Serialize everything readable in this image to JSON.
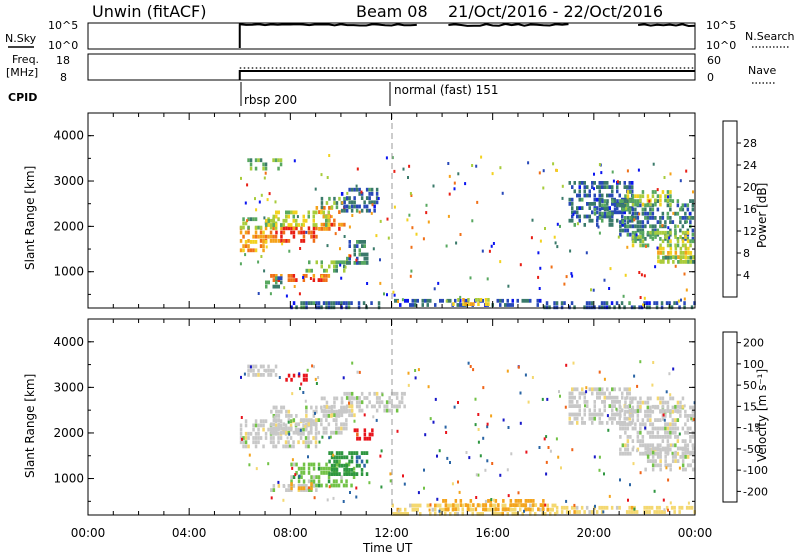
{
  "header": {
    "station": "Unwin (fitACF)",
    "beam": "Beam 08",
    "dates": "21/Oct/2016 - 22/Oct/2016"
  },
  "status_panels": {
    "nsky_label": "N.Sky",
    "nsky_ticks": [
      "10^5",
      "10^0"
    ],
    "nsearch_label": "N.Search",
    "freq_label": "Freq.",
    "freq_unit": "[MHz]",
    "freq_ticks": [
      "18",
      "8"
    ],
    "nave_ticks": [
      "60",
      "0"
    ],
    "nave_label": "Nave",
    "cpid_label": "CPID",
    "cpid_entries": [
      "rbsp 200",
      "normal (fast) 151"
    ]
  },
  "colors": {
    "power": [
      "#0a14f0",
      "#2848b8",
      "#3a7a6a",
      "#58a860",
      "#a8cc3c",
      "#f2d220",
      "#f5a21a",
      "#f07018",
      "#e81e14"
    ],
    "velocity": [
      "#e8141c",
      "#f06418",
      "#f4a41c",
      "#f4d870",
      "#c8c8c8",
      "#72c246",
      "#2e9640",
      "#2a64a4",
      "#1818c8"
    ],
    "ground_scatter": "#c4c4c4"
  },
  "chart_data": [
    {
      "type": "heatmap",
      "name": "power",
      "ylabel": "Slant Range [km]",
      "yticks": [
        "4000",
        "3000",
        "2000",
        "1000"
      ],
      "ylim": [
        200,
        4500
      ],
      "colorbar": {
        "label": "Power [dB]",
        "ticks": [
          "28",
          "24",
          "20",
          "16",
          "12",
          "8",
          "4"
        ],
        "range": [
          0,
          32
        ]
      },
      "regions": [
        {
          "t": [
            6.0,
            7.4
          ],
          "r": [
            1700,
            2000
          ],
          "v": 24
        },
        {
          "t": [
            7.4,
            9.0
          ],
          "r": [
            1650,
            2000
          ],
          "v": 28
        },
        {
          "t": [
            9.0,
            10.1
          ],
          "r": [
            1950,
            2450
          ],
          "v": 26
        },
        {
          "t": [
            6.0,
            7.5
          ],
          "r": [
            2000,
            2200
          ],
          "v": 14
        },
        {
          "t": [
            7.0,
            9.5
          ],
          "r": [
            2050,
            2350
          ],
          "v": 17
        },
        {
          "t": [
            9.2,
            10.3
          ],
          "r": [
            2400,
            2650
          ],
          "v": 12
        },
        {
          "t": [
            10.0,
            11.4
          ],
          "r": [
            2300,
            2850
          ],
          "v": 7
        },
        {
          "t": [
            8.6,
            10.2
          ],
          "r": [
            1050,
            1250
          ],
          "v": 14
        },
        {
          "t": [
            7.2,
            9.6
          ],
          "r": [
            780,
            950
          ],
          "v": 28
        },
        {
          "t": [
            10.2,
            11.0
          ],
          "r": [
            1200,
            1700
          ],
          "v": 9
        },
        {
          "t": [
            6.3,
            7.6
          ],
          "r": [
            3250,
            3500
          ],
          "v": 13
        },
        {
          "t": [
            6.0,
            7.0
          ],
          "r": [
            1500,
            1700
          ],
          "v": 22
        },
        {
          "t": [
            7.0,
            7.6
          ],
          "r": [
            700,
            900
          ],
          "v": 10
        },
        {
          "t": [
            8.0,
            11.5
          ],
          "r": [
            250,
            350
          ],
          "v": 7
        },
        {
          "t": [
            12.0,
            18.0
          ],
          "r": [
            250,
            400
          ],
          "v": 6
        },
        {
          "t": [
            14.4,
            15.8
          ],
          "r": [
            280,
            420
          ],
          "v": 20
        },
        {
          "t": [
            18.0,
            24.0
          ],
          "r": [
            250,
            350
          ],
          "v": 7
        },
        {
          "t": [
            19.0,
            21.5
          ],
          "r": [
            2000,
            3000
          ],
          "v": 7
        },
        {
          "t": [
            21.0,
            23.9
          ],
          "r": [
            1700,
            2600
          ],
          "v": 9
        },
        {
          "t": [
            21.5,
            23.9
          ],
          "r": [
            1550,
            1900
          ],
          "v": 15
        },
        {
          "t": [
            22.5,
            23.9
          ],
          "r": [
            1200,
            1550
          ],
          "v": 19
        },
        {
          "t": [
            22.6,
            23.9
          ],
          "r": [
            1200,
            1350
          ],
          "v": 13
        },
        {
          "t": [
            21.2,
            23.0
          ],
          "r": [
            2500,
            2800
          ],
          "v": 16
        },
        {
          "t": [
            20.0,
            21.3
          ],
          "r": [
            2200,
            2600
          ],
          "v": 10
        }
      ]
    },
    {
      "type": "heatmap",
      "name": "velocity",
      "ylabel": "Slant Range [km]",
      "yticks": [
        "4000",
        "3000",
        "2000",
        "1000"
      ],
      "ylim": [
        200,
        4500
      ],
      "colorbar": {
        "label": "Velocity [m s⁻¹]",
        "ticks": [
          "200",
          "100",
          "50",
          "15",
          "-15",
          "-50",
          "-100",
          "-200"
        ]
      },
      "regions": [
        {
          "t": [
            6.0,
            9.0
          ],
          "r": [
            1700,
            2300
          ],
          "c": 4
        },
        {
          "t": [
            7.2,
            10.2
          ],
          "r": [
            2000,
            2600
          ],
          "c": 4
        },
        {
          "t": [
            9.2,
            10.5
          ],
          "r": [
            2400,
            2800
          ],
          "c": 4
        },
        {
          "t": [
            8.0,
            10.5
          ],
          "r": [
            850,
            1350
          ],
          "c": 5
        },
        {
          "t": [
            9.5,
            11.0
          ],
          "r": [
            1100,
            1600
          ],
          "c": 6
        },
        {
          "t": [
            7.2,
            9.0
          ],
          "r": [
            700,
            880
          ],
          "c": 4
        },
        {
          "t": [
            8.0,
            8.8
          ],
          "r": [
            780,
            920
          ],
          "c": 2
        },
        {
          "t": [
            10.5,
            11.2
          ],
          "r": [
            1900,
            2100
          ],
          "c": 0
        },
        {
          "t": [
            7.8,
            8.6
          ],
          "r": [
            3150,
            3300
          ],
          "c": 0
        },
        {
          "t": [
            6.3,
            7.4
          ],
          "r": [
            3300,
            3500
          ],
          "c": 4
        },
        {
          "t": [
            10.0,
            12.5
          ],
          "r": [
            2500,
            2900
          ],
          "c": 4
        },
        {
          "t": [
            12.0,
            18.5
          ],
          "r": [
            250,
            450
          ],
          "c": 3
        },
        {
          "t": [
            14.0,
            18.0
          ],
          "r": [
            300,
            550
          ],
          "c": 2
        },
        {
          "t": [
            18.5,
            24.0
          ],
          "r": [
            250,
            400
          ],
          "c": 3
        },
        {
          "t": [
            19.0,
            21.5
          ],
          "r": [
            2200,
            3000
          ],
          "c": 4
        },
        {
          "t": [
            21.0,
            23.9
          ],
          "r": [
            1500,
            2600
          ],
          "c": 4
        },
        {
          "t": [
            22.0,
            23.9
          ],
          "r": [
            1150,
            1700
          ],
          "c": 4
        },
        {
          "t": [
            21.2,
            23.5
          ],
          "r": [
            2500,
            2800
          ],
          "c": 4
        }
      ]
    }
  ],
  "x_axis": {
    "label": "Time UT",
    "ticks": [
      "00:00",
      "04:00",
      "08:00",
      "12:00",
      "16:00",
      "20:00",
      "00:00"
    ],
    "range_hours": [
      0,
      24
    ],
    "dashed_marker_hour": 12
  }
}
